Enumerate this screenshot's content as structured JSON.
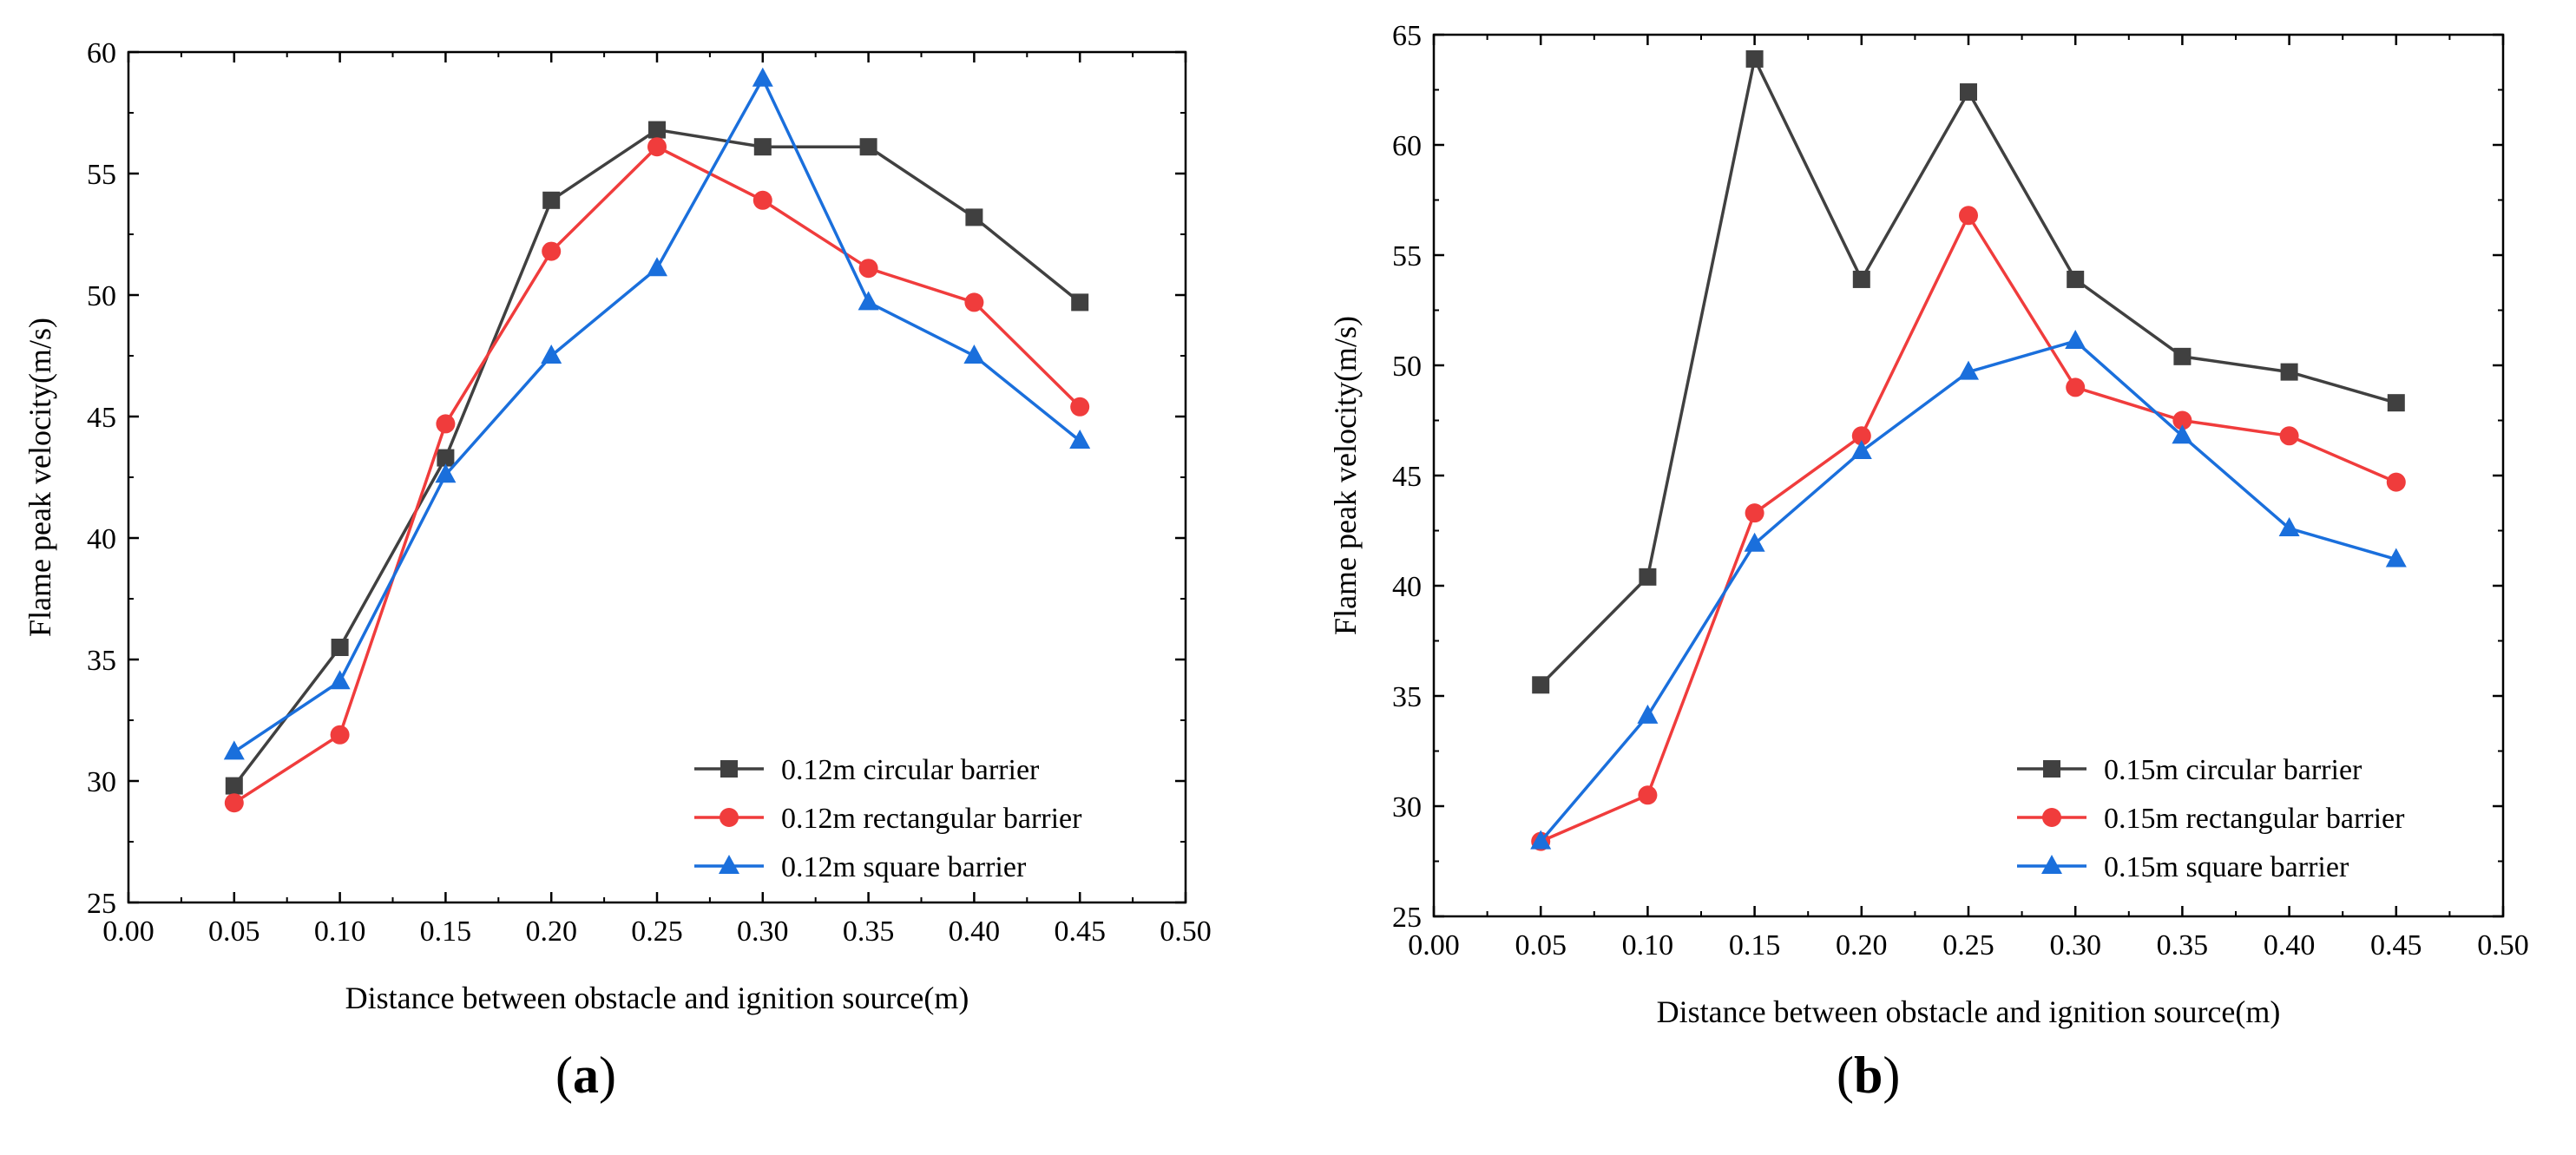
{
  "chart_data": [
    {
      "type": "line",
      "panel_label": "a",
      "xlabel": "Distance between obstacle and ignition source(m)",
      "ylabel": "Flame peak velocity(m/s)",
      "xlim": [
        0.0,
        0.5
      ],
      "ylim": [
        25,
        60
      ],
      "xticks": [
        "0.00",
        "0.05",
        "0.10",
        "0.15",
        "0.20",
        "0.25",
        "0.30",
        "0.35",
        "0.40",
        "0.45",
        "0.50"
      ],
      "yticks": [
        "25",
        "30",
        "35",
        "40",
        "45",
        "50",
        "55",
        "60"
      ],
      "legend_position": "bottom-right",
      "x": [
        0.05,
        0.1,
        0.15,
        0.2,
        0.25,
        0.3,
        0.35,
        0.4,
        0.45
      ],
      "series": [
        {
          "name": "0.12m circular barrier",
          "color": "#404040",
          "marker": "square",
          "values": [
            29.8,
            35.5,
            43.3,
            53.9,
            56.8,
            56.1,
            56.1,
            53.2,
            49.7
          ]
        },
        {
          "name": "0.12m rectangular barrier",
          "color": "#f03c3c",
          "marker": "circle",
          "values": [
            29.1,
            31.9,
            44.7,
            51.8,
            56.1,
            53.9,
            51.1,
            49.7,
            45.4
          ]
        },
        {
          "name": "0.12m square barrier",
          "color": "#1a6fdc",
          "marker": "triangle",
          "values": [
            31.2,
            34.1,
            42.6,
            47.5,
            51.1,
            58.9,
            49.7,
            47.5,
            44.0
          ]
        }
      ]
    },
    {
      "type": "line",
      "panel_label": "b",
      "xlabel": "Distance between obstacle and ignition source(m)",
      "ylabel": "Flame peak velocity(m/s)",
      "xlim": [
        0.0,
        0.5
      ],
      "ylim": [
        25,
        65
      ],
      "xticks": [
        "0.00",
        "0.05",
        "0.10",
        "0.15",
        "0.20",
        "0.25",
        "0.30",
        "0.35",
        "0.40",
        "0.45",
        "0.50"
      ],
      "yticks": [
        "25",
        "30",
        "35",
        "40",
        "45",
        "50",
        "55",
        "60",
        "65"
      ],
      "legend_position": "bottom-right",
      "x": [
        0.05,
        0.1,
        0.15,
        0.2,
        0.25,
        0.3,
        0.35,
        0.4,
        0.45
      ],
      "series": [
        {
          "name": "0.15m circular barrier",
          "color": "#404040",
          "marker": "square",
          "values": [
            35.5,
            40.4,
            63.9,
            53.9,
            62.4,
            53.9,
            50.4,
            49.7,
            48.3
          ]
        },
        {
          "name": "0.15m rectangular barrier",
          "color": "#f03c3c",
          "marker": "circle",
          "values": [
            28.4,
            30.5,
            43.3,
            46.8,
            56.8,
            49.0,
            47.5,
            46.8,
            44.7
          ]
        },
        {
          "name": "0.15m square barrier",
          "color": "#1a6fdc",
          "marker": "triangle",
          "values": [
            28.4,
            34.1,
            41.9,
            46.1,
            49.7,
            51.1,
            46.8,
            42.6,
            41.2
          ]
        }
      ]
    }
  ]
}
